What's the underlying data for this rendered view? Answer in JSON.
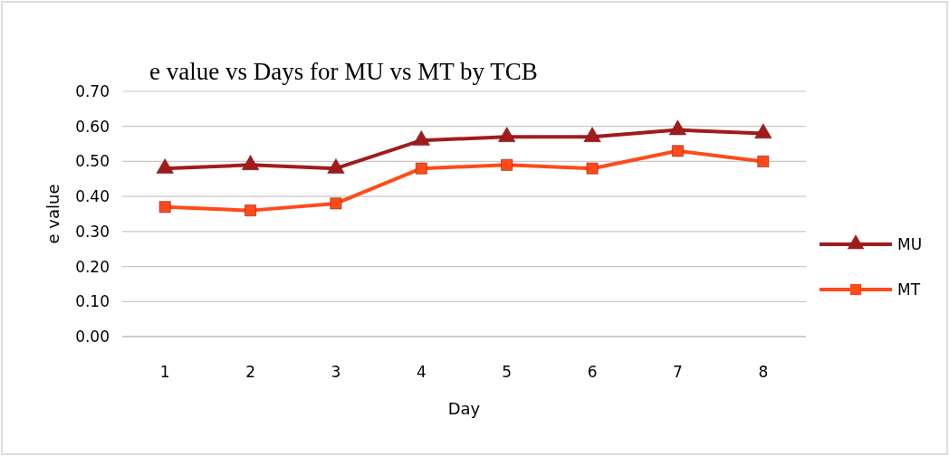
{
  "chart_data": {
    "type": "line",
    "title": "e value vs Days for MU vs MT by TCB",
    "xlabel": "Day",
    "ylabel": "e value",
    "categories": [
      "1",
      "2",
      "3",
      "4",
      "5",
      "6",
      "7",
      "8"
    ],
    "series": [
      {
        "name": "MU",
        "color": "#a01c1c",
        "marker": "triangle",
        "values": [
          0.48,
          0.49,
          0.48,
          0.56,
          0.57,
          0.57,
          0.59,
          0.58
        ]
      },
      {
        "name": "MT",
        "color": "#ff4a1a",
        "marker": "square",
        "values": [
          0.37,
          0.36,
          0.38,
          0.48,
          0.49,
          0.48,
          0.53,
          0.5
        ]
      }
    ],
    "ylim": [
      0,
      0.7
    ],
    "yticks": [
      {
        "value": 0,
        "label": "0.00"
      },
      {
        "value": 0.1,
        "label": "0.10"
      },
      {
        "value": 0.2,
        "label": "0.20"
      },
      {
        "value": 0.3,
        "label": "0.30"
      },
      {
        "value": 0.4,
        "label": "0.40"
      },
      {
        "value": 0.5,
        "label": "0.50"
      },
      {
        "value": 0.6,
        "label": "0.60"
      },
      {
        "value": 0.7,
        "label": "0.70"
      }
    ],
    "grid": "y",
    "legend": "right",
    "line_style": "solid"
  }
}
